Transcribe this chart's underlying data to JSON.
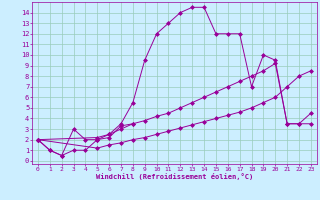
{
  "xlabel": "Windchill (Refroidissement éolien,°C)",
  "bg_color": "#cceeff",
  "line_color": "#990099",
  "grid_color": "#99ccbb",
  "xlim": [
    -0.5,
    23.5
  ],
  "ylim": [
    -0.3,
    15.0
  ],
  "xticks": [
    0,
    1,
    2,
    3,
    4,
    5,
    6,
    7,
    8,
    9,
    10,
    11,
    12,
    13,
    14,
    15,
    16,
    17,
    18,
    19,
    20,
    21,
    22,
    23
  ],
  "yticks": [
    0,
    1,
    2,
    3,
    4,
    5,
    6,
    7,
    8,
    9,
    10,
    11,
    12,
    13,
    14
  ],
  "line1_x": [
    0,
    1,
    2,
    3,
    4,
    5,
    6,
    7,
    8,
    9,
    10,
    11,
    12,
    13,
    14,
    15,
    16,
    17,
    18,
    19,
    20,
    21,
    22,
    23
  ],
  "line1_y": [
    2,
    1,
    0.5,
    1,
    1,
    2,
    2.5,
    3.5,
    5.5,
    9.5,
    12,
    13,
    14,
    14.5,
    14.5,
    12,
    12,
    12,
    7,
    10,
    9.5,
    3.5,
    3.5,
    3.5
  ],
  "line2_x": [
    0,
    1,
    2,
    3,
    4,
    5,
    6,
    7,
    8
  ],
  "line2_y": [
    2,
    1,
    0.5,
    3,
    2,
    2,
    2.2,
    3.3,
    3.5
  ],
  "line3_x": [
    0,
    5,
    6,
    7,
    8,
    9,
    10,
    11,
    12,
    13,
    14,
    15,
    16,
    17,
    18,
    19,
    20,
    21,
    22,
    23
  ],
  "line3_y": [
    2,
    2.2,
    2.5,
    3.0,
    3.5,
    3.8,
    4.2,
    4.5,
    5.0,
    5.5,
    6.0,
    6.5,
    7.0,
    7.5,
    8.0,
    8.5,
    9.2,
    3.5,
    3.5,
    4.5
  ],
  "line4_x": [
    0,
    5,
    6,
    7,
    8,
    9,
    10,
    11,
    12,
    13,
    14,
    15,
    16,
    17,
    18,
    19,
    20,
    21,
    22,
    23
  ],
  "line4_y": [
    2,
    1.2,
    1.5,
    1.7,
    2.0,
    2.2,
    2.5,
    2.8,
    3.1,
    3.4,
    3.7,
    4.0,
    4.3,
    4.6,
    5.0,
    5.5,
    6.0,
    7.0,
    8.0,
    8.5
  ]
}
